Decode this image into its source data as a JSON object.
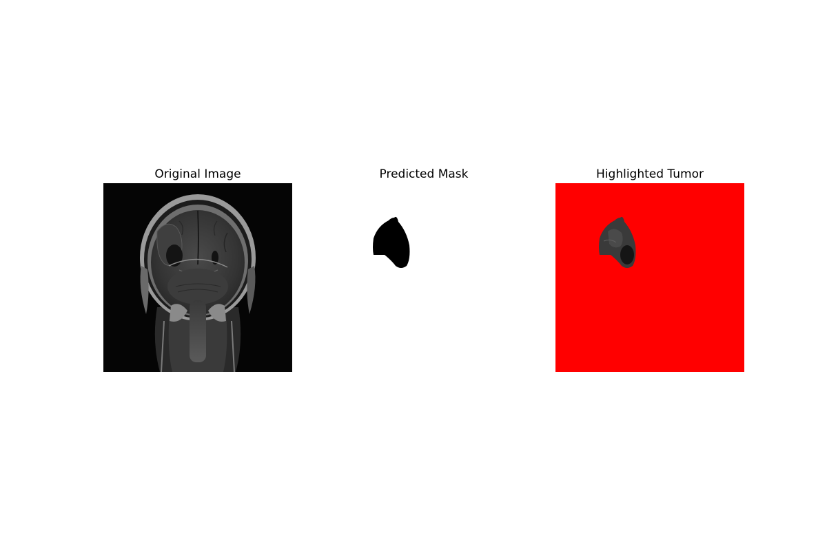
{
  "panels": [
    {
      "title": "Original Image",
      "image": "mri-coronal-brain-scan"
    },
    {
      "title": "Predicted Mask",
      "image": "tumor-mask-silhouette"
    },
    {
      "title": "Highlighted Tumor",
      "image": "tumor-on-red-background"
    }
  ],
  "colors": {
    "figure_background": "#ffffff",
    "mask_region": "#000000",
    "highlight_background": "#ff0000"
  }
}
